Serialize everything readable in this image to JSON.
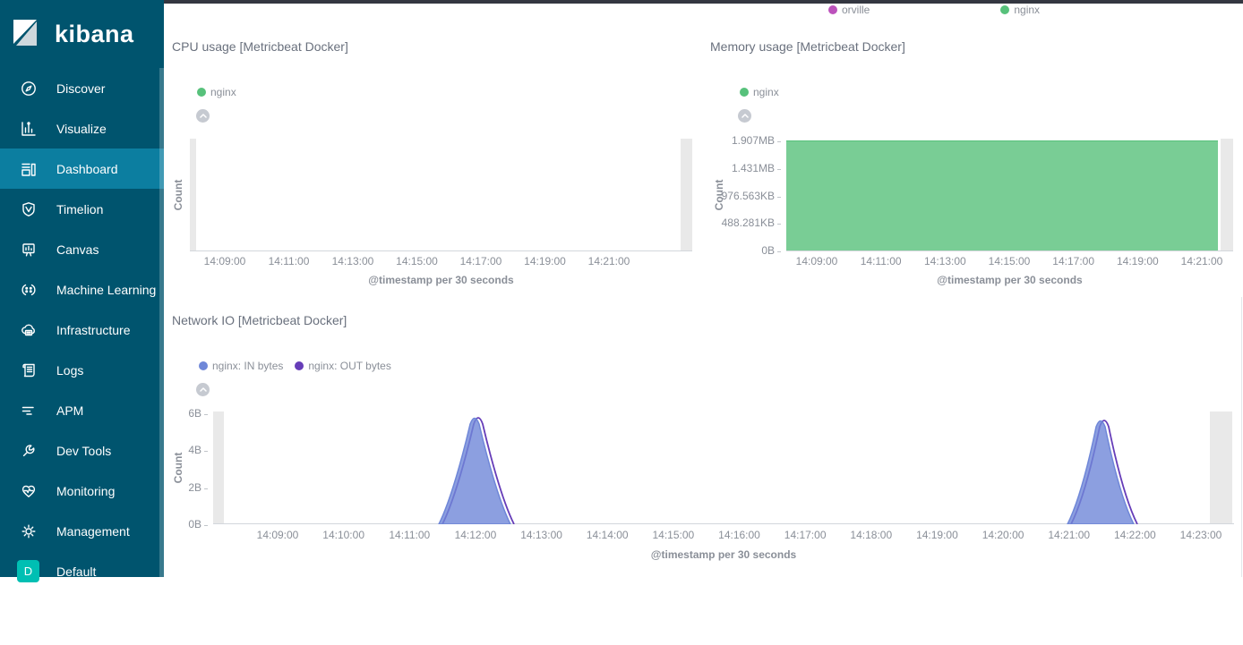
{
  "app": {
    "logo_text": "kibana"
  },
  "colors": {
    "sidebar_bg": "#00546e",
    "sidebar_selected_bg": "#0c7ea0",
    "topbar": "#343741",
    "space_badge": "#00bfb3",
    "series_green": "#57c17b",
    "series_magenta": "#bc52bc",
    "series_in_blue": "#6f87d8",
    "series_out_purple": "#663db8",
    "endzone_gray": "#e9e9e9",
    "chart_text": "#8a8f98"
  },
  "sidebar": {
    "items": [
      {
        "label": "Discover",
        "icon": "discover-icon"
      },
      {
        "label": "Visualize",
        "icon": "visualize-icon"
      },
      {
        "label": "Dashboard",
        "icon": "dashboard-icon",
        "active": true
      },
      {
        "label": "Timelion",
        "icon": "timelion-icon"
      },
      {
        "label": "Canvas",
        "icon": "canvas-icon"
      },
      {
        "label": "Machine Learning",
        "icon": "machine-learning-icon"
      },
      {
        "label": "Infrastructure",
        "icon": "infrastructure-icon"
      },
      {
        "label": "Logs",
        "icon": "logs-icon"
      },
      {
        "label": "APM",
        "icon": "apm-icon"
      },
      {
        "label": "Dev Tools",
        "icon": "dev-tools-icon"
      },
      {
        "label": "Monitoring",
        "icon": "monitoring-icon"
      },
      {
        "label": "Management",
        "icon": "management-icon"
      },
      {
        "label": "Default",
        "icon": "default-space-icon",
        "badge": "D"
      }
    ]
  },
  "top_legend": {
    "items": [
      {
        "label": "orville",
        "color": "#bc52bc"
      },
      {
        "label": "nginx",
        "color": "#57c17b"
      }
    ]
  },
  "cpu_panel": {
    "title": "CPU usage [Metricbeat Docker]",
    "legend": {
      "items": [
        {
          "label": "nginx",
          "color": "#57c17b"
        }
      ]
    },
    "ylabel": "Count",
    "xlabel": "@timestamp per 30 seconds",
    "xticks": [
      "14:09:00",
      "14:11:00",
      "14:13:00",
      "14:15:00",
      "14:17:00",
      "14:19:00",
      "14:21:00"
    ]
  },
  "memory_panel": {
    "title": "Memory usage [Metricbeat Docker]",
    "legend": {
      "items": [
        {
          "label": "nginx",
          "color": "#57c17b"
        }
      ]
    },
    "ylabel": "Count",
    "xlabel": "@timestamp per 30 seconds",
    "yticks": [
      "1.907MB",
      "1.431MB",
      "976.563KB",
      "488.281KB",
      "0B"
    ],
    "xticks": [
      "14:09:00",
      "14:11:00",
      "14:13:00",
      "14:15:00",
      "14:17:00",
      "14:19:00",
      "14:21:00"
    ]
  },
  "network_panel": {
    "title": "Network IO [Metricbeat Docker]",
    "legend": {
      "items": [
        {
          "label": "nginx: IN bytes",
          "color": "#6f87d8"
        },
        {
          "label": "nginx: OUT bytes",
          "color": "#663db8"
        }
      ]
    },
    "ylabel": "Count",
    "xlabel": "@timestamp per 30 seconds",
    "yticks": [
      "6B",
      "4B",
      "2B",
      "0B"
    ],
    "xticks": [
      "14:09:00",
      "14:10:00",
      "14:11:00",
      "14:12:00",
      "14:13:00",
      "14:14:00",
      "14:15:00",
      "14:16:00",
      "14:17:00",
      "14:18:00",
      "14:19:00",
      "14:20:00",
      "14:21:00",
      "14:22:00",
      "14:23:00"
    ]
  },
  "chart_data": [
    {
      "type": "area",
      "title": "CPU usage [Metricbeat Docker]",
      "xlabel": "@timestamp per 30 seconds",
      "ylabel": "Count",
      "xticks": [
        "14:09:00",
        "14:11:00",
        "14:13:00",
        "14:15:00",
        "14:17:00",
        "14:19:00",
        "14:21:00"
      ],
      "legend_position": "top-left",
      "series": [
        {
          "name": "nginx",
          "color": "#57c17b",
          "points": []
        }
      ],
      "note": "plot area empty; light gray partial-bucket endzone bands at both left and right edges"
    },
    {
      "type": "area",
      "title": "Memory usage [Metricbeat Docker]",
      "xlabel": "@timestamp per 30 seconds",
      "ylabel": "Count",
      "yticks": [
        "0B",
        "488.281KB",
        "976.563KB",
        "1.431MB",
        "1.907MB"
      ],
      "xticks": [
        "14:09:00",
        "14:11:00",
        "14:13:00",
        "14:15:00",
        "14:17:00",
        "14:19:00",
        "14:21:00"
      ],
      "legend_position": "top-left",
      "series": [
        {
          "name": "nginx",
          "color": "#57c17b",
          "shape": "constant",
          "value": "≈1.9MB across full visible range 14:08:30–14:22:30"
        }
      ]
    },
    {
      "type": "area",
      "title": "Network IO [Metricbeat Docker]",
      "xlabel": "@timestamp per 30 seconds",
      "ylabel": "Count",
      "yticks": [
        "0B",
        "2B",
        "4B",
        "6B"
      ],
      "xticks": [
        "14:09:00",
        "14:10:00",
        "14:11:00",
        "14:12:00",
        "14:13:00",
        "14:14:00",
        "14:15:00",
        "14:16:00",
        "14:17:00",
        "14:18:00",
        "14:19:00",
        "14:20:00",
        "14:21:00",
        "14:22:00",
        "14:23:00"
      ],
      "legend_position": "top-left",
      "series": [
        {
          "name": "nginx: IN bytes",
          "color": "#6f87d8",
          "points": [
            [
              "14:11:30",
              0
            ],
            [
              "14:12:00",
              6
            ],
            [
              "14:12:30",
              0
            ],
            [
              "14:21:00",
              0
            ],
            [
              "14:21:30",
              5.9
            ],
            [
              "14:22:00",
              0
            ]
          ]
        },
        {
          "name": "nginx: OUT bytes",
          "color": "#663db8",
          "points": [
            [
              "14:11:30",
              0
            ],
            [
              "14:12:00",
              6
            ],
            [
              "14:12:30",
              0
            ],
            [
              "14:21:00",
              0
            ],
            [
              "14:21:30",
              5.9
            ],
            [
              "14:22:00",
              0
            ]
          ]
        }
      ]
    }
  ]
}
